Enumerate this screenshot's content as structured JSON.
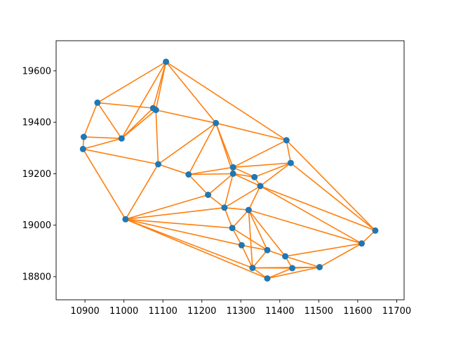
{
  "chart_data": {
    "type": "scatter",
    "title": "",
    "xlabel": "",
    "ylabel": "",
    "xlim": [
      10826,
      11719
    ],
    "ylim": [
      18710,
      19717
    ],
    "x_ticks": [
      10900,
      11000,
      11100,
      11200,
      11300,
      11400,
      11500,
      11600,
      11700
    ],
    "y_ticks": [
      18800,
      19000,
      19200,
      19400,
      19600
    ],
    "grid": false,
    "colors": {
      "points": "#1f77b4",
      "edges": "#ff7f0e"
    },
    "points": [
      [
        11108,
        19635
      ],
      [
        10932,
        19476
      ],
      [
        11075,
        19455
      ],
      [
        11082,
        19448
      ],
      [
        10897,
        19343
      ],
      [
        10994,
        19337
      ],
      [
        11236,
        19397
      ],
      [
        11417,
        19330
      ],
      [
        10895,
        19296
      ],
      [
        11088,
        19237
      ],
      [
        11166,
        19197
      ],
      [
        11280,
        19225
      ],
      [
        11280,
        19200
      ],
      [
        11335,
        19187
      ],
      [
        11428,
        19242
      ],
      [
        11350,
        19152
      ],
      [
        11216,
        19118
      ],
      [
        11258,
        19068
      ],
      [
        11320,
        19059
      ],
      [
        11004,
        19023
      ],
      [
        11278,
        18989
      ],
      [
        11645,
        18979
      ],
      [
        11302,
        18922
      ],
      [
        11610,
        18929
      ],
      [
        11368,
        18903
      ],
      [
        11414,
        18879
      ],
      [
        11330,
        18834
      ],
      [
        11432,
        18833
      ],
      [
        11502,
        18837
      ],
      [
        11368,
        18793
      ]
    ],
    "edges": [
      [
        0,
        1
      ],
      [
        0,
        2
      ],
      [
        0,
        3
      ],
      [
        0,
        5
      ],
      [
        0,
        6
      ],
      [
        0,
        7
      ],
      [
        1,
        2
      ],
      [
        1,
        4
      ],
      [
        1,
        5
      ],
      [
        2,
        3
      ],
      [
        2,
        5
      ],
      [
        3,
        5
      ],
      [
        3,
        6
      ],
      [
        3,
        9
      ],
      [
        4,
        5
      ],
      [
        4,
        8
      ],
      [
        5,
        8
      ],
      [
        6,
        7
      ],
      [
        6,
        9
      ],
      [
        6,
        10
      ],
      [
        6,
        11
      ],
      [
        6,
        12
      ],
      [
        7,
        11
      ],
      [
        7,
        14
      ],
      [
        7,
        21
      ],
      [
        8,
        9
      ],
      [
        8,
        19
      ],
      [
        9,
        10
      ],
      [
        9,
        19
      ],
      [
        10,
        12
      ],
      [
        10,
        16
      ],
      [
        10,
        11
      ],
      [
        11,
        13
      ],
      [
        11,
        14
      ],
      [
        11,
        12
      ],
      [
        12,
        15
      ],
      [
        12,
        16
      ],
      [
        12,
        17
      ],
      [
        12,
        13
      ],
      [
        13,
        15
      ],
      [
        14,
        15
      ],
      [
        14,
        13
      ],
      [
        14,
        21
      ],
      [
        15,
        17
      ],
      [
        15,
        18
      ],
      [
        15,
        21
      ],
      [
        15,
        23
      ],
      [
        16,
        17
      ],
      [
        16,
        19
      ],
      [
        17,
        18
      ],
      [
        17,
        19
      ],
      [
        17,
        20
      ],
      [
        18,
        20
      ],
      [
        18,
        23
      ],
      [
        18,
        24
      ],
      [
        18,
        25
      ],
      [
        18,
        26
      ],
      [
        19,
        20
      ],
      [
        19,
        22
      ],
      [
        19,
        26
      ],
      [
        19,
        29
      ],
      [
        20,
        22
      ],
      [
        20,
        24
      ],
      [
        21,
        23
      ],
      [
        22,
        24
      ],
      [
        22,
        26
      ],
      [
        23,
        25
      ],
      [
        23,
        28
      ],
      [
        24,
        25
      ],
      [
        24,
        26
      ],
      [
        25,
        27
      ],
      [
        25,
        28
      ],
      [
        26,
        27
      ],
      [
        26,
        29
      ],
      [
        26,
        28
      ],
      [
        27,
        28
      ],
      [
        27,
        29
      ],
      [
        28,
        29
      ]
    ]
  }
}
